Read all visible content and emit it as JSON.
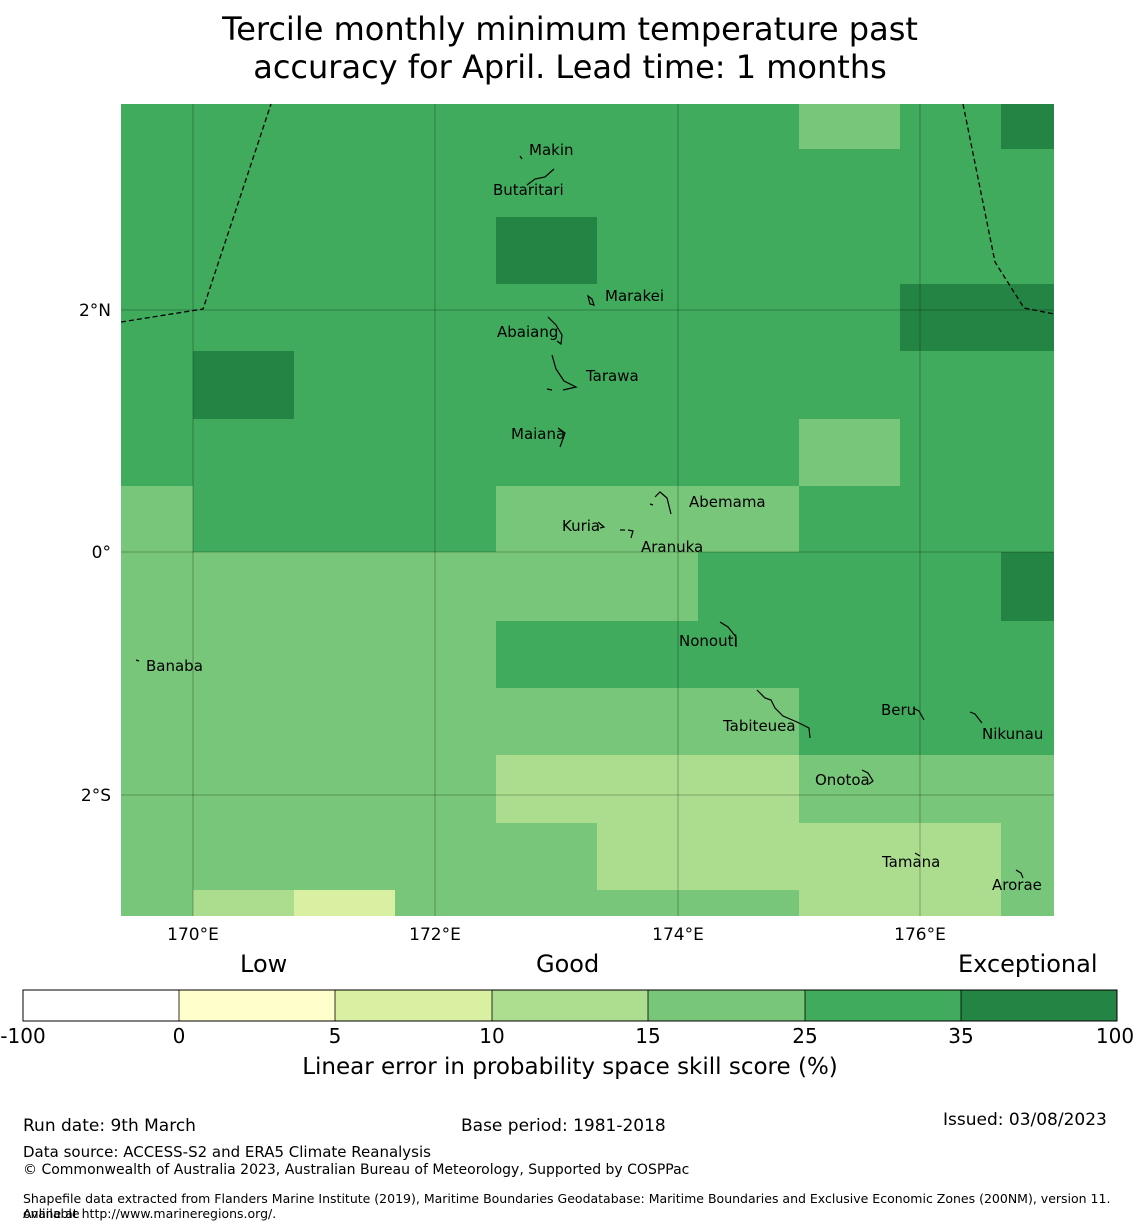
{
  "title_line1": "Tercile monthly minimum temperature past",
  "title_line2": "accuracy for April. Lead time: 1 months",
  "map": {
    "lat_ticks": [
      "2°N",
      "0°",
      "2°S"
    ],
    "lon_ticks": [
      "170°E",
      "172°E",
      "174°E",
      "176°E"
    ],
    "islands": [
      "Makin",
      "Butaritari",
      "Marakei",
      "Abaiang",
      "Tarawa",
      "Maiana",
      "Abemama",
      "Kuria",
      "Aranuka",
      "Banaba",
      "Nonouti",
      "Beru",
      "Nikunau",
      "Tabiteuea",
      "Onotoa",
      "Tamana",
      "Arorae"
    ],
    "colors": {
      "c15": "#acdd8e",
      "c25": "#78c679",
      "c35": "#41ab5d",
      "c100": "#238443",
      "c10": "#d9f0a3"
    }
  },
  "colorbar": {
    "headings": {
      "low": "Low",
      "good": "Good",
      "exceptional": "Exceptional"
    },
    "ticks": [
      "-100",
      "0",
      "5",
      "10",
      "15",
      "25",
      "35",
      "100"
    ],
    "colors": [
      "#ffffff",
      "#ffffcc",
      "#d9f0a3",
      "#addd8e",
      "#78c679",
      "#41ab5d",
      "#238443"
    ],
    "label": "Linear error in probability space skill score (%)"
  },
  "footer": {
    "run_date": "Run date: 9th March",
    "base_period": "Base period: 1981-2018",
    "issued": "Issued: 03/08/2023",
    "data_source": "Data source: ACCESS-S2 and ERA5 Climate Reanalysis",
    "copyright": "© Commonwealth of Australia 2023, Australian Bureau of Meteorology, Supported by COSPPac",
    "shapefile_line1": "Shapefile data extracted from Flanders Marine Institute (2019), Maritime Boundaries Geodatabase: Maritime Boundaries and Exclusive Economic Zones (200NM), version 11. Available",
    "shapefile_line2": "online at http://www.marineregions.org/."
  }
}
